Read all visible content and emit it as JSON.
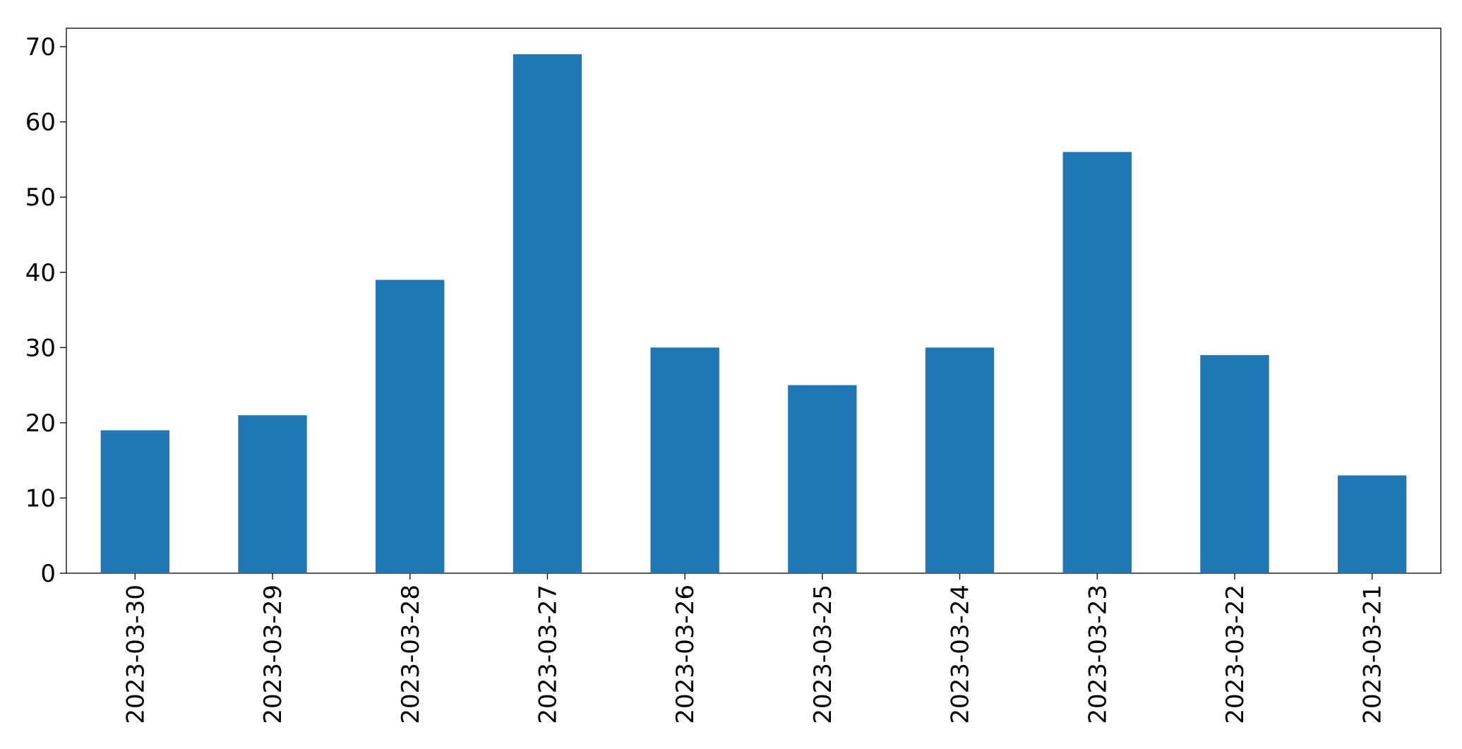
{
  "chart_data": {
    "type": "bar",
    "categories": [
      "2023-03-30",
      "2023-03-29",
      "2023-03-28",
      "2023-03-27",
      "2023-03-26",
      "2023-03-25",
      "2023-03-24",
      "2023-03-23",
      "2023-03-22",
      "2023-03-21"
    ],
    "values": [
      19,
      21,
      39,
      69,
      30,
      25,
      30,
      56,
      29,
      13
    ],
    "color": "#1f77b4",
    "ylim": [
      0,
      72.45
    ],
    "yticks": [
      0,
      10,
      20,
      30,
      40,
      50,
      60,
      70
    ],
    "grid": false
  }
}
